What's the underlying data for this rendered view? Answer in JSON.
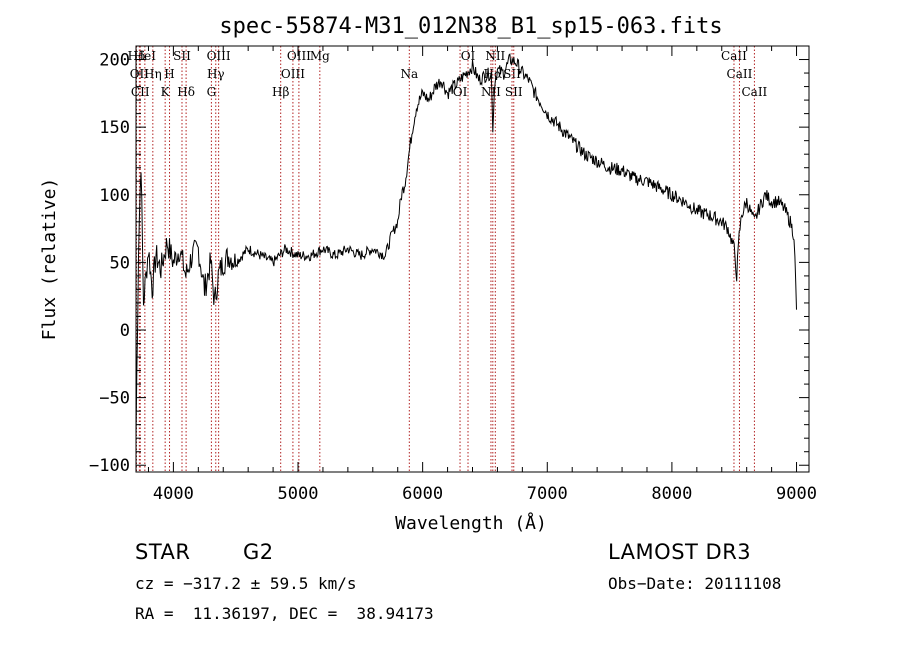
{
  "chart_data": {
    "type": "line",
    "title": "spec-55874-M31_012N38_B1_sp15-063.fits",
    "xlabel": "Wavelength (Å)",
    "ylabel": "Flux (relative)",
    "xlim": [
      3700,
      9100
    ],
    "ylim": [
      -105,
      210
    ],
    "x_ticks": [
      4000,
      5000,
      6000,
      7000,
      8000,
      9000
    ],
    "y_ticks": [
      -100,
      -50,
      0,
      50,
      100,
      150,
      200
    ],
    "x_tick_labels": [
      "4000",
      "5000",
      "6000",
      "7000",
      "8000",
      "9000"
    ],
    "y_tick_labels": [
      "−100",
      "−50",
      "0",
      "50",
      "100",
      "150",
      "200"
    ],
    "series": [
      {
        "name": "spectrum",
        "x": [
          3700,
          3720,
          3740,
          3760,
          3780,
          3800,
          3830,
          3860,
          3900,
          3950,
          4000,
          4050,
          4100,
          4150,
          4200,
          4250,
          4300,
          4330,
          4360,
          4400,
          4450,
          4500,
          4600,
          4700,
          4800,
          4850,
          4900,
          5000,
          5100,
          5200,
          5300,
          5400,
          5500,
          5600,
          5700,
          5750,
          5800,
          5830,
          5860,
          5890,
          5920,
          5950,
          6000,
          6050,
          6100,
          6150,
          6200,
          6250,
          6280,
          6300,
          6350,
          6400,
          6450,
          6500,
          6550,
          6563,
          6580,
          6600,
          6650,
          6700,
          6750,
          6800,
          6850,
          6900,
          6950,
          7000,
          7100,
          7200,
          7300,
          7400,
          7500,
          7600,
          7700,
          7800,
          7900,
          8000,
          8100,
          8200,
          8300,
          8400,
          8450,
          8500,
          8520,
          8540,
          8560,
          8600,
          8662,
          8700,
          8750,
          8800,
          8850,
          8900,
          8950,
          8980,
          9000
        ],
        "values": [
          -80,
          60,
          125,
          20,
          40,
          60,
          30,
          55,
          45,
          65,
          50,
          60,
          40,
          55,
          60,
          30,
          50,
          20,
          40,
          50,
          55,
          50,
          60,
          55,
          50,
          55,
          60,
          55,
          55,
          60,
          55,
          60,
          55,
          60,
          55,
          70,
          80,
          100,
          110,
          130,
          150,
          165,
          175,
          170,
          180,
          185,
          175,
          180,
          182,
          185,
          190,
          195,
          185,
          188,
          190,
          150,
          185,
          192,
          190,
          200,
          198,
          190,
          185,
          175,
          168,
          160,
          150,
          140,
          130,
          125,
          120,
          118,
          112,
          110,
          105,
          100,
          95,
          88,
          85,
          80,
          75,
          60,
          40,
          70,
          85,
          95,
          80,
          90,
          100,
          95,
          95,
          90,
          80,
          70,
          15
        ]
      }
    ],
    "line_markers": [
      {
        "label": "Hδ",
        "x": 3704
      },
      {
        "label": "OII",
        "x": 3727
      },
      {
        "label": "CII",
        "x": 3734
      },
      {
        "label": "HeI",
        "x": 3771
      },
      {
        "label": "Hη",
        "x": 3835
      },
      {
        "label": "K",
        "x": 3934
      },
      {
        "label": "SII",
        "x": 4069
      },
      {
        "label": "H",
        "x": 3969
      },
      {
        "label": "Hδ",
        "x": 4102
      },
      {
        "label": "OIII",
        "x": 4363
      },
      {
        "label": "Hγ",
        "x": 4340
      },
      {
        "label": "G",
        "x": 4305
      },
      {
        "label": "OIII",
        "x": 5007
      },
      {
        "label": "OIII",
        "x": 4959
      },
      {
        "label": "Hβ",
        "x": 4861
      },
      {
        "label": "Mg",
        "x": 5175
      },
      {
        "label": "Na",
        "x": 5893
      },
      {
        "label": "OI",
        "x": 6300
      },
      {
        "label": "OI",
        "x": 6364
      },
      {
        "label": "Hα",
        "x": 6563
      },
      {
        "label": "NII",
        "x": 6548
      },
      {
        "label": "NII",
        "x": 6583
      },
      {
        "label": "SII",
        "x": 6717
      },
      {
        "label": "SII",
        "x": 6731
      },
      {
        "label": "CaII",
        "x": 8498
      },
      {
        "label": "CaII",
        "x": 8542
      },
      {
        "label": "CaII",
        "x": 8662
      }
    ]
  },
  "footer": {
    "class": "STAR",
    "subclass": "G2",
    "survey": "LAMOST DR3",
    "cz_line": "cz = −317.2 ± 59.5 km/s",
    "obs_date": "Obs−Date: 20111108",
    "radec_line": "RA =  11.36197, DEC =  38.94173"
  }
}
